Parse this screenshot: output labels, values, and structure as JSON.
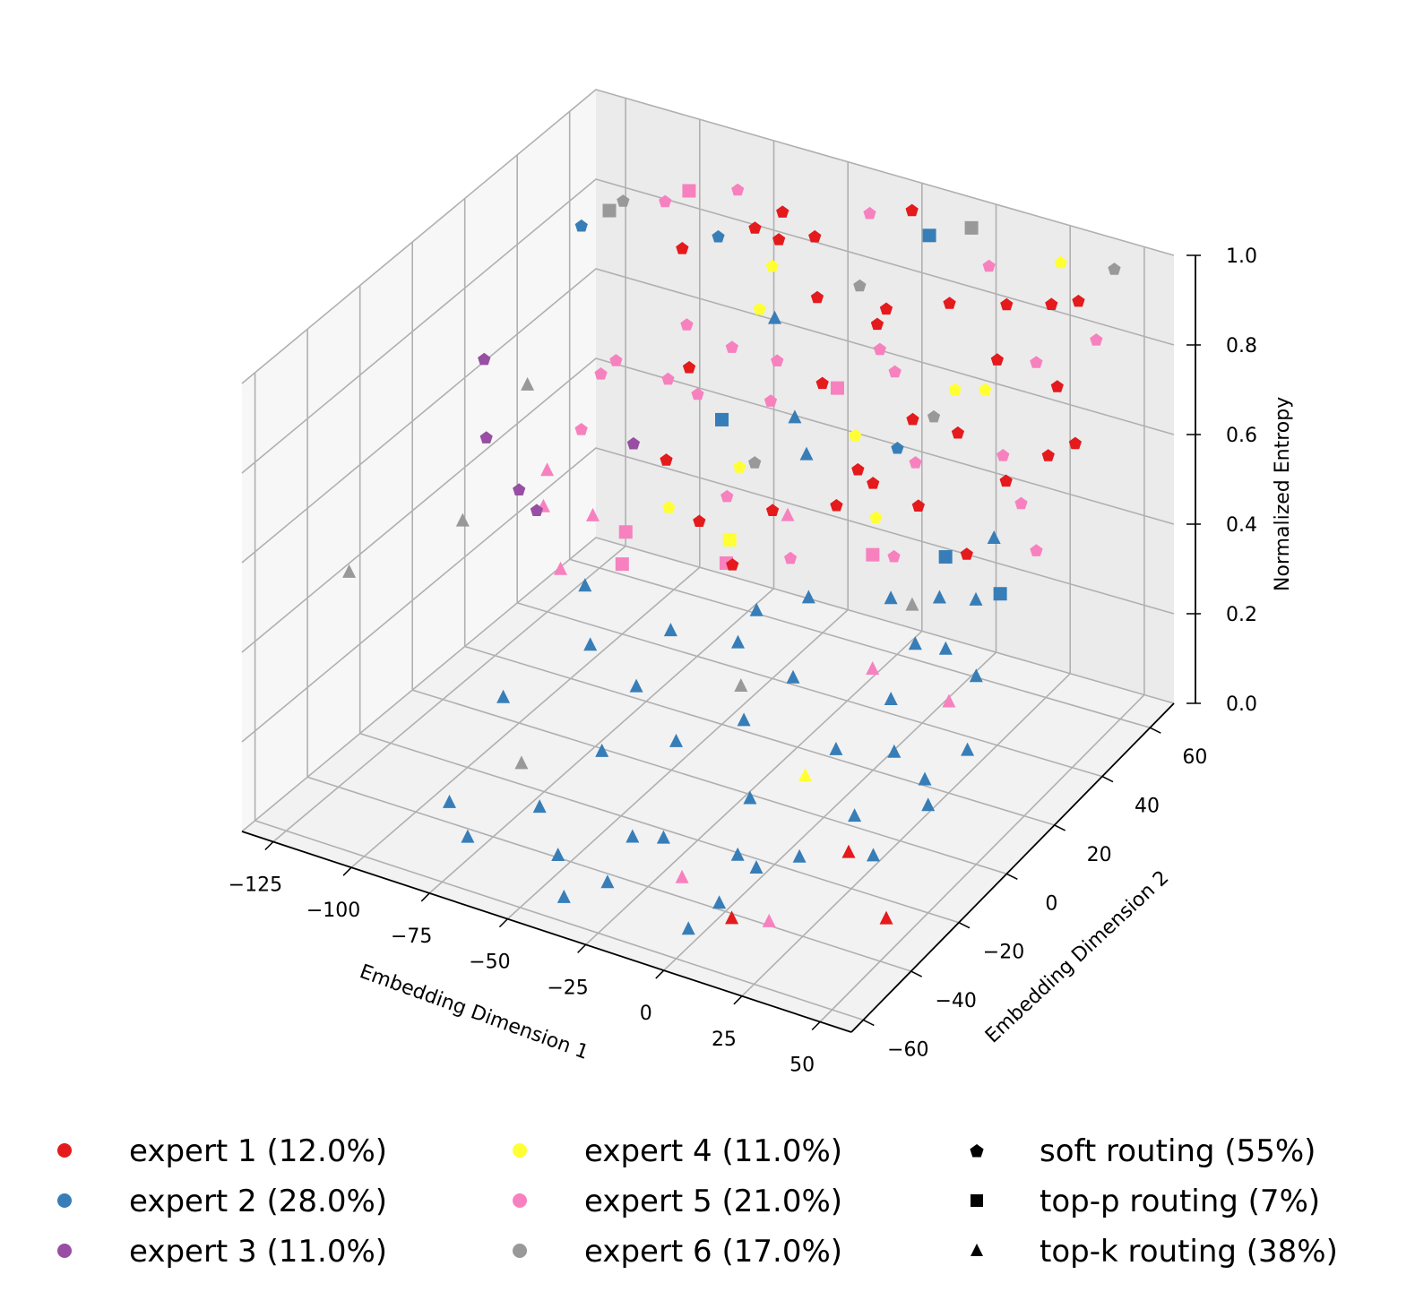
{
  "chart_data": {
    "type": "scatter",
    "projection": "3d",
    "xlabel": "Embedding Dimension 1",
    "ylabel": "Embedding Dimension 2",
    "zlabel": "Normalized Entropy",
    "xlim": [
      -135,
      60
    ],
    "ylim": [
      -65,
      70
    ],
    "zlim": [
      0,
      1
    ],
    "x_ticks": [
      "−125",
      "−100",
      "−75",
      "−50",
      "−25",
      "0",
      "25",
      "50"
    ],
    "x_tick_values": [
      -125,
      -100,
      -75,
      -50,
      -25,
      0,
      25,
      50
    ],
    "y_ticks": [
      "−60",
      "−40",
      "−20",
      "0",
      "20",
      "40",
      "60"
    ],
    "y_tick_values": [
      -60,
      -40,
      -20,
      0,
      20,
      40,
      60
    ],
    "z_ticks": [
      "0.0",
      "0.2",
      "0.4",
      "0.6",
      "0.8",
      "1.0"
    ],
    "z_tick_values": [
      0,
      0.2,
      0.4,
      0.6,
      0.8,
      1.0
    ],
    "grid": true,
    "legend_placement": "bottom",
    "experts": [
      {
        "label": "expert 1 (12.0%)",
        "color": "#e41a1c"
      },
      {
        "label": "expert 2 (28.0%)",
        "color": "#377eb8"
      },
      {
        "label": "expert 3 (11.0%)",
        "color": "#984ea3"
      },
      {
        "label": "expert 4 (11.0%)",
        "color": "#ffff33"
      },
      {
        "label": "expert 5 (21.0%)",
        "color": "#f781bf"
      },
      {
        "label": "expert 6 (17.0%)",
        "color": "#999999"
      }
    ],
    "routing": [
      {
        "label": "soft routing (55%)",
        "marker": "pentagon"
      },
      {
        "label": "top-p routing (7%)",
        "marker": "square"
      },
      {
        "label": "top-k routing (38%)",
        "marker": "triangle"
      }
    ],
    "points": [
      [
        -130,
        -30,
        0.42,
        6,
        "t"
      ],
      [
        -120,
        10,
        0.72,
        3,
        "p"
      ],
      [
        -115,
        5,
        0.58,
        3,
        "p"
      ],
      [
        -110,
        15,
        0.66,
        6,
        "t"
      ],
      [
        -105,
        30,
        0.95,
        2,
        "p"
      ],
      [
        -100,
        35,
        0.97,
        6,
        "s"
      ],
      [
        -98,
        38,
        0.98,
        6,
        "p"
      ],
      [
        -95,
        5,
        0.55,
        5,
        "t"
      ],
      [
        -92,
        0,
        0.5,
        5,
        "t"
      ],
      [
        -90,
        -5,
        0.52,
        3,
        "p"
      ],
      [
        -88,
        10,
        0.63,
        5,
        "p"
      ],
      [
        -85,
        20,
        0.74,
        5,
        "p"
      ],
      [
        -82,
        45,
        1.0,
        5,
        "s"
      ],
      [
        -80,
        5,
        0.48,
        5,
        "t"
      ],
      [
        -78,
        -10,
        0.44,
        5,
        "t"
      ],
      [
        -75,
        15,
        0.6,
        3,
        "p"
      ],
      [
        -72,
        25,
        0.7,
        5,
        "p"
      ],
      [
        -70,
        30,
        0.8,
        5,
        "p"
      ],
      [
        -68,
        40,
        0.95,
        2,
        "p"
      ],
      [
        -65,
        0,
        0.5,
        5,
        "s"
      ],
      [
        -62,
        -5,
        0.46,
        5,
        "s"
      ],
      [
        -60,
        10,
        0.62,
        1,
        "p"
      ],
      [
        -58,
        20,
        0.72,
        5,
        "p"
      ],
      [
        -55,
        50,
        0.98,
        1,
        "p"
      ],
      [
        -52,
        45,
        0.95,
        1,
        "p"
      ],
      [
        -50,
        35,
        0.85,
        4,
        "p"
      ],
      [
        -48,
        -30,
        0.2,
        2,
        "t"
      ],
      [
        -45,
        -20,
        0.3,
        2,
        "t"
      ],
      [
        -42,
        -10,
        0.38,
        2,
        "t"
      ],
      [
        -40,
        15,
        0.62,
        4,
        "p"
      ],
      [
        -38,
        25,
        0.72,
        5,
        "p"
      ],
      [
        -35,
        5,
        0.52,
        4,
        "s"
      ],
      [
        -32,
        0,
        0.5,
        5,
        "s"
      ],
      [
        -30,
        -40,
        0.1,
        2,
        "t"
      ],
      [
        -28,
        -25,
        0.24,
        2,
        "t"
      ],
      [
        -25,
        30,
        0.76,
        1,
        "p"
      ],
      [
        -22,
        20,
        0.66,
        2,
        "t"
      ],
      [
        -20,
        10,
        0.58,
        5,
        "t"
      ],
      [
        -18,
        -5,
        0.45,
        2,
        "t"
      ],
      [
        -15,
        -15,
        0.34,
        6,
        "t"
      ],
      [
        -12,
        40,
        0.9,
        1,
        "p"
      ],
      [
        -10,
        35,
        0.84,
        5,
        "p"
      ],
      [
        -8,
        15,
        0.6,
        1,
        "p"
      ],
      [
        -5,
        0,
        0.48,
        2,
        "t"
      ],
      [
        -2,
        -10,
        0.36,
        2,
        "t"
      ],
      [
        0,
        -35,
        0.1,
        2,
        "t"
      ],
      [
        2,
        -45,
        0.05,
        2,
        "t"
      ],
      [
        4,
        25,
        0.7,
        2,
        "p"
      ],
      [
        5,
        45,
        0.92,
        1,
        "p"
      ],
      [
        8,
        10,
        0.55,
        5,
        "s"
      ],
      [
        10,
        -20,
        0.22,
        4,
        "t"
      ],
      [
        12,
        30,
        0.76,
        6,
        "p"
      ],
      [
        15,
        20,
        0.62,
        1,
        "p"
      ],
      [
        18,
        5,
        0.5,
        2,
        "t"
      ],
      [
        20,
        -5,
        0.4,
        5,
        "t"
      ],
      [
        22,
        -50,
        0.08,
        5,
        "t"
      ],
      [
        25,
        35,
        0.82,
        4,
        "p"
      ],
      [
        28,
        15,
        0.56,
        2,
        "s"
      ],
      [
        30,
        0,
        0.45,
        2,
        "t"
      ],
      [
        32,
        -30,
        0.15,
        1,
        "t"
      ],
      [
        35,
        50,
        0.95,
        1,
        "p"
      ],
      [
        38,
        40,
        0.88,
        5,
        "p"
      ],
      [
        40,
        25,
        0.7,
        1,
        "p"
      ],
      [
        42,
        10,
        0.52,
        2,
        "t"
      ],
      [
        45,
        -15,
        0.26,
        2,
        "t"
      ],
      [
        48,
        60,
        1.0,
        6,
        "p"
      ],
      [
        50,
        30,
        0.75,
        1,
        "p"
      ],
      [
        52,
        -40,
        0.1,
        1,
        "t"
      ],
      [
        54,
        20,
        0.6,
        5,
        "p"
      ],
      [
        -40,
        45,
        0.98,
        1,
        "p"
      ],
      [
        -30,
        55,
        1.0,
        5,
        "p"
      ],
      [
        -20,
        60,
        1.0,
        1,
        "p"
      ],
      [
        -10,
        55,
        0.99,
        2,
        "s"
      ],
      [
        0,
        60,
        1.0,
        6,
        "s"
      ],
      [
        10,
        55,
        0.96,
        5,
        "p"
      ],
      [
        20,
        50,
        0.92,
        1,
        "p"
      ],
      [
        30,
        60,
        0.98,
        4,
        "p"
      ],
      [
        40,
        55,
        0.94,
        1,
        "p"
      ],
      [
        50,
        50,
        0.9,
        5,
        "p"
      ],
      [
        -50,
        20,
        0.68,
        2,
        "s"
      ],
      [
        -40,
        10,
        0.58,
        5,
        "p"
      ],
      [
        -30,
        0,
        0.5,
        1,
        "p"
      ],
      [
        -20,
        -10,
        0.4,
        2,
        "t"
      ],
      [
        -10,
        -20,
        0.3,
        2,
        "t"
      ],
      [
        0,
        -30,
        0.2,
        2,
        "t"
      ],
      [
        10,
        -40,
        0.12,
        2,
        "t"
      ],
      [
        20,
        -20,
        0.3,
        2,
        "t"
      ],
      [
        30,
        -10,
        0.38,
        2,
        "t"
      ],
      [
        40,
        0,
        0.46,
        2,
        "t"
      ],
      [
        50,
        10,
        0.55,
        2,
        "s"
      ],
      [
        -60,
        -20,
        0.36,
        2,
        "t"
      ],
      [
        -70,
        -10,
        0.42,
        2,
        "t"
      ],
      [
        -80,
        -30,
        0.25,
        2,
        "t"
      ],
      [
        -90,
        20,
        0.7,
        5,
        "p"
      ],
      [
        -100,
        0,
        0.52,
        3,
        "p"
      ],
      [
        -110,
        -10,
        0.48,
        6,
        "t"
      ],
      [
        -55,
        5,
        0.55,
        4,
        "p"
      ],
      [
        -45,
        5,
        0.54,
        1,
        "p"
      ],
      [
        -35,
        15,
        0.64,
        6,
        "p"
      ],
      [
        -25,
        10,
        0.58,
        1,
        "p"
      ],
      [
        -15,
        5,
        0.52,
        5,
        "p"
      ],
      [
        -5,
        20,
        0.66,
        1,
        "p"
      ],
      [
        5,
        15,
        0.6,
        4,
        "p"
      ],
      [
        15,
        10,
        0.56,
        5,
        "p"
      ],
      [
        25,
        5,
        0.5,
        6,
        "t"
      ],
      [
        35,
        15,
        0.58,
        1,
        "p"
      ],
      [
        45,
        25,
        0.66,
        5,
        "p"
      ],
      [
        55,
        35,
        0.76,
        1,
        "p"
      ],
      [
        -65,
        25,
        0.74,
        1,
        "p"
      ],
      [
        -55,
        30,
        0.78,
        5,
        "p"
      ],
      [
        -45,
        35,
        0.84,
        2,
        "t"
      ],
      [
        -35,
        40,
        0.88,
        1,
        "p"
      ],
      [
        -25,
        45,
        0.9,
        6,
        "p"
      ],
      [
        -15,
        40,
        0.86,
        1,
        "p"
      ],
      [
        -5,
        35,
        0.8,
        5,
        "p"
      ],
      [
        5,
        30,
        0.74,
        1,
        "p"
      ],
      [
        15,
        35,
        0.8,
        4,
        "p"
      ],
      [
        25,
        40,
        0.86,
        1,
        "p"
      ],
      [
        35,
        30,
        0.72,
        5,
        "p"
      ],
      [
        45,
        40,
        0.84,
        1,
        "p"
      ],
      [
        -30,
        -50,
        0.05,
        2,
        "t"
      ],
      [
        -20,
        -40,
        0.12,
        2,
        "t"
      ],
      [
        -10,
        -45,
        0.08,
        5,
        "t"
      ],
      [
        0,
        -55,
        0.04,
        2,
        "t"
      ],
      [
        10,
        -50,
        0.06,
        1,
        "t"
      ],
      [
        20,
        -35,
        0.14,
        2,
        "t"
      ],
      [
        30,
        -25,
        0.2,
        2,
        "t"
      ],
      [
        40,
        -30,
        0.16,
        2,
        "t"
      ],
      [
        50,
        -20,
        0.24,
        2,
        "t"
      ],
      [
        -50,
        -45,
        0.04,
        2,
        "t"
      ],
      [
        -40,
        -55,
        0.02,
        2,
        "t"
      ],
      [
        -60,
        -40,
        0.1,
        2,
        "t"
      ],
      [
        -70,
        -35,
        0.15,
        6,
        "t"
      ],
      [
        -75,
        -50,
        0.05,
        2,
        "t"
      ],
      [
        -85,
        -45,
        0.08,
        2,
        "t"
      ],
      [
        30,
        10,
        0.5,
        2,
        "t"
      ],
      [
        40,
        20,
        0.6,
        2,
        "t"
      ],
      [
        50,
        0,
        0.42,
        2,
        "t"
      ],
      [
        55,
        -10,
        0.32,
        2,
        "t"
      ],
      [
        45,
        -5,
        0.38,
        5,
        "t"
      ],
      [
        35,
        -15,
        0.3,
        2,
        "t"
      ],
      [
        -10,
        25,
        0.7,
        4,
        "p"
      ],
      [
        0,
        20,
        0.64,
        1,
        "p"
      ],
      [
        10,
        25,
        0.68,
        5,
        "p"
      ],
      [
        20,
        30,
        0.74,
        1,
        "p"
      ],
      [
        -20,
        30,
        0.76,
        5,
        "s"
      ],
      [
        -30,
        25,
        0.7,
        2,
        "t"
      ],
      [
        -40,
        30,
        0.78,
        5,
        "p"
      ],
      [
        -50,
        40,
        0.92,
        4,
        "p"
      ],
      [
        -60,
        45,
        0.96,
        1,
        "p"
      ],
      [
        -70,
        50,
        1.0,
        5,
        "p"
      ],
      [
        -80,
        40,
        0.9,
        1,
        "p"
      ],
      [
        -90,
        45,
        0.96,
        5,
        "p"
      ]
    ]
  }
}
